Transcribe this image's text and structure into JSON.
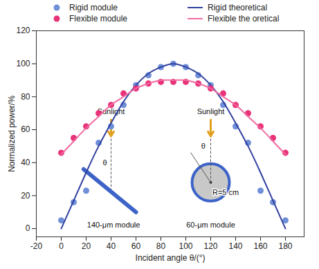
{
  "chart_data": {
    "type": "scatter",
    "x_label": "Incident angle θ/(°)",
    "y_label": "Normalized power/%",
    "x": [
      0,
      10,
      20,
      30,
      40,
      50,
      60,
      70,
      80,
      90,
      100,
      110,
      120,
      130,
      140,
      150,
      160,
      170,
      180
    ],
    "series": [
      {
        "name": "Rigid module",
        "type": "scatter",
        "marker": "circle",
        "color": "#6f8fd8",
        "values": [
          5,
          16,
          23,
          52,
          62,
          75,
          87,
          93,
          98,
          100,
          98,
          93,
          87,
          75,
          62,
          52,
          23,
          16,
          5
        ]
      },
      {
        "name": "Rigid theoretical",
        "type": "line",
        "line_style": "solid",
        "color": "#2f3f9e",
        "values": [
          0,
          17,
          34,
          50,
          64,
          77,
          87,
          94,
          98,
          100,
          98,
          94,
          87,
          77,
          64,
          50,
          34,
          17,
          0
        ]
      },
      {
        "name": "Flexible module",
        "type": "scatter",
        "marker": "circle",
        "color": "#e8337a",
        "values": [
          46,
          55,
          62,
          70,
          75,
          82,
          85,
          88,
          89,
          89,
          89,
          88,
          85,
          82,
          75,
          70,
          62,
          55,
          46
        ]
      },
      {
        "name": "Flexible the oretical",
        "type": "line",
        "line_style": "solid",
        "color": "#f06aa0",
        "values": [
          45,
          53,
          61,
          68,
          75,
          80,
          85,
          88,
          90,
          90,
          90,
          88,
          85,
          80,
          75,
          68,
          61,
          53,
          45
        ]
      }
    ],
    "xlim": [
      -20,
      195
    ],
    "xticks": [
      -20,
      0,
      20,
      40,
      60,
      80,
      100,
      120,
      140,
      160,
      180
    ],
    "ylim": [
      -5,
      120
    ],
    "yticks": [
      0,
      20,
      40,
      60,
      80,
      100,
      120
    ],
    "grid": false,
    "legend": "top",
    "annotations": [
      "Sunlight",
      "Sunlight",
      "θ",
      "θ",
      "R=5 cm",
      "140-μm module",
      "60-μm module"
    ]
  }
}
